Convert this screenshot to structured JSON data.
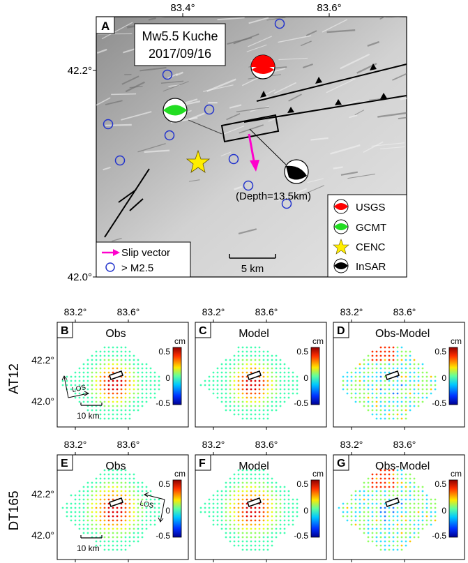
{
  "top": {
    "panel": "A",
    "title_line1": "Mw5.5 Kuche",
    "title_line2": "2017/09/16",
    "lon_ticks": [
      "83.4°",
      "83.6°"
    ],
    "lat_ticks": [
      "42.2°",
      "42.0°"
    ],
    "depth_label": "(Depth=13.5km)",
    "scale_label": "5 km",
    "legend_right": [
      {
        "label": "USGS",
        "color": "#ff0000"
      },
      {
        "label": "GCMT",
        "color": "#22dd22"
      },
      {
        "label": "CENC",
        "color": "#ffee00"
      },
      {
        "label": "InSAR",
        "color": "#000000"
      }
    ],
    "legend_left": {
      "slip": "Slip vector",
      "quakes": "> M2.5"
    },
    "slip_color": "#ff00cc",
    "quake_color": "#2233cc"
  },
  "rows": [
    {
      "label": "AT12",
      "los": "LOS",
      "panels": [
        {
          "letter": "B",
          "title": "Obs",
          "lon_ticks": [
            "83.2°",
            "83.6°"
          ],
          "lat_ticks": [
            "42.2°",
            "42.0°"
          ],
          "cb_unit": "cm",
          "cb_ticks": [
            "0.5",
            "0",
            "-0.5"
          ],
          "scale": "10 km"
        },
        {
          "letter": "C",
          "title": "Model",
          "lon_ticks": [
            "83.2°",
            "83.6°"
          ],
          "cb_unit": "cm",
          "cb_ticks": [
            "0.5",
            "0",
            "-0.5"
          ]
        },
        {
          "letter": "D",
          "title": "Obs-Model",
          "lon_ticks": [
            "83.2°",
            "83.6°"
          ],
          "cb_unit": "cm",
          "cb_ticks": [
            "0.5",
            "0",
            "-0.5"
          ]
        }
      ]
    },
    {
      "label": "DT165",
      "los": "LOS",
      "panels": [
        {
          "letter": "E",
          "title": "Obs",
          "lon_ticks": [
            "83.2°",
            "83.6°"
          ],
          "lat_ticks": [
            "42.2°",
            "42.0°"
          ],
          "cb_unit": "cm",
          "cb_ticks": [
            "0.5",
            "0",
            "-0.5"
          ],
          "scale": "10 km"
        },
        {
          "letter": "F",
          "title": "Model",
          "lon_ticks": [
            "83.2°",
            "83.6°"
          ],
          "cb_unit": "cm",
          "cb_ticks": [
            "0.5",
            "0",
            "-0.5"
          ]
        },
        {
          "letter": "G",
          "title": "Obs-Model",
          "lon_ticks": [
            "83.2°",
            "83.6°"
          ],
          "cb_unit": "cm",
          "cb_ticks": [
            "0.5",
            "0",
            "-0.5"
          ]
        }
      ]
    }
  ]
}
